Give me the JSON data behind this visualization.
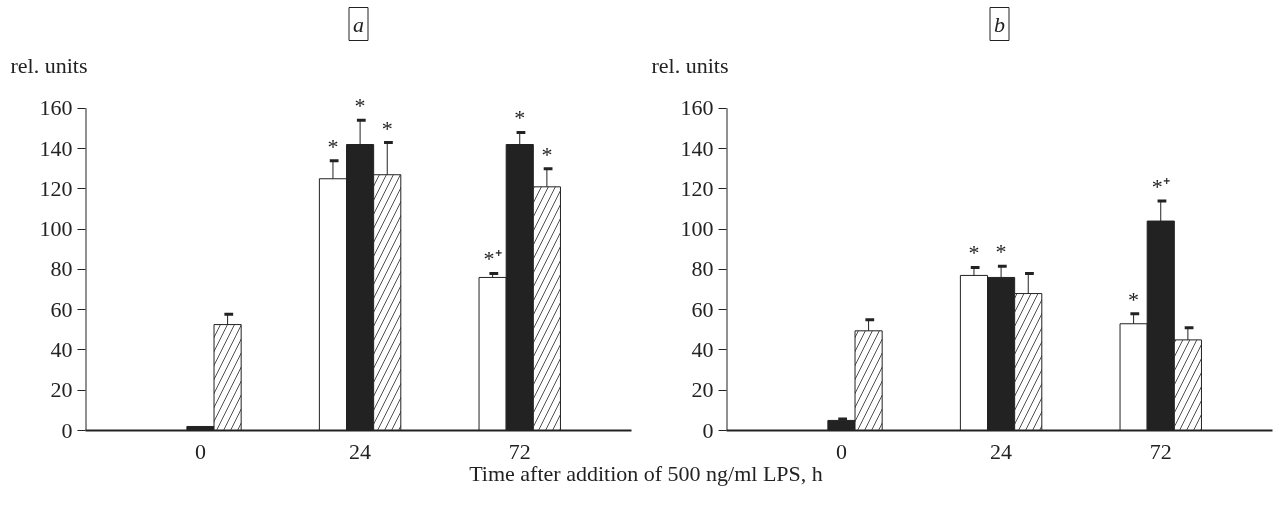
{
  "chart_data": [
    {
      "type": "bar",
      "title": "a",
      "ylabel": "rel. units",
      "xlabel": "Time after addition of 500 ng/ml LPS, h",
      "categories": [
        "0",
        "24",
        "72"
      ],
      "ylim": [
        0,
        160
      ],
      "yticks": [
        0,
        20,
        40,
        60,
        80,
        100,
        120,
        140,
        160
      ],
      "grid": false,
      "series": [
        {
          "color": "#ffffff",
          "values": [
            null,
            125,
            76
          ],
          "errors": [
            null,
            [
              125,
              134
            ],
            [
              76,
              78
            ]
          ],
          "value_labels": [
            null,
            "*",
            "*⁺"
          ]
        },
        {
          "color": "#222222",
          "values": [
            2,
            142,
            142
          ],
          "errors": [
            null,
            [
              142,
              154
            ],
            [
              142,
              148
            ]
          ],
          "value_labels": [
            null,
            "*",
            "*"
          ]
        },
        {
          "color": "#ffffff",
          "values": [
            52.6,
            127,
            121
          ],
          "errors": [
            [
              52.6,
              57.7
            ],
            [
              127,
              143
            ],
            [
              121,
              130
            ]
          ],
          "value_labels": [
            null,
            "*",
            "*"
          ]
        }
      ]
    },
    {
      "type": "bar",
      "title": "b",
      "ylabel": "rel. units",
      "categories": [
        "0",
        "24",
        "72"
      ],
      "ylim": [
        0,
        160
      ],
      "yticks": [
        0,
        20,
        40,
        60,
        80,
        100,
        120,
        140,
        160
      ],
      "grid": false,
      "series": [
        {
          "color": "#ffffff",
          "values": [
            null,
            77,
            53
          ],
          "errors": [
            null,
            [
              77,
              81
            ],
            [
              53,
              58
            ]
          ],
          "value_labels": [
            null,
            "*",
            "*"
          ]
        },
        {
          "color": "#222222",
          "values": [
            5,
            76,
            104
          ],
          "errors": [
            [
              5,
              5.7
            ],
            [
              76,
              81.5
            ],
            [
              104,
              114
            ]
          ],
          "value_labels": [
            null,
            "*",
            "*⁺"
          ]
        },
        {
          "color": "#ffffff",
          "values": [
            49.5,
            68,
            45
          ],
          "errors": [
            [
              49.5,
              55
            ],
            [
              68,
              78
            ],
            [
              45,
              51
            ]
          ]
        }
      ]
    }
  ]
}
